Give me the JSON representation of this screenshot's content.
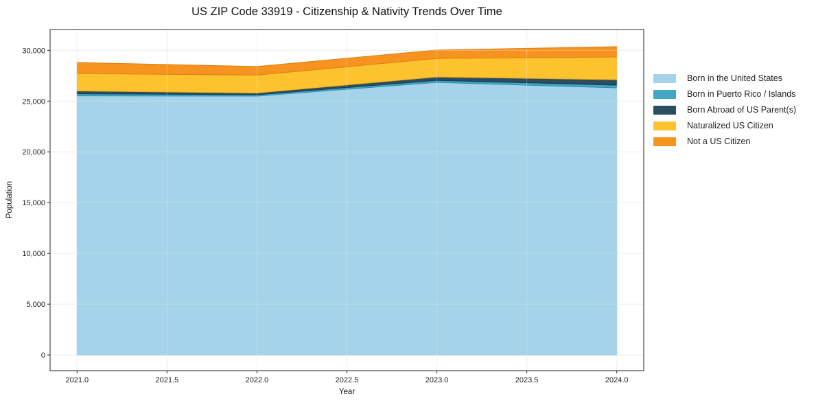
{
  "chart_data": {
    "type": "area",
    "stacked": true,
    "title": "US ZIP Code 33919 - Citizenship & Nativity Trends Over Time",
    "xlabel": "Year",
    "ylabel": "Population",
    "x": [
      2021.0,
      2022.0,
      2023.0,
      2024.0
    ],
    "series": [
      {
        "name": "Born in the United States",
        "color": "#a5d3e9",
        "edge": "#8cc2de",
        "values": [
          25520,
          25490,
          26840,
          26300
        ]
      },
      {
        "name": "Born in Puerto Rico / Islands",
        "color": "#41a7c4",
        "edge": "#2f8fae",
        "values": [
          210,
          140,
          200,
          270
        ]
      },
      {
        "name": "Born Abroad of US Parent(s)",
        "color": "#2a4d62",
        "edge": "#1b3748",
        "values": [
          270,
          170,
          340,
          540
        ]
      },
      {
        "name": "Naturalized US Citizen",
        "color": "#fdc32f",
        "edge": "#edaa1c",
        "values": [
          1720,
          1760,
          1820,
          2230
        ]
      },
      {
        "name": "Not a US Citizen",
        "color": "#f7941f",
        "edge": "#de7e14",
        "values": [
          1080,
          850,
          830,
          1020
        ]
      }
    ],
    "totals": [
      28800,
      28410,
      30030,
      30360
    ],
    "xlim": [
      2020.85,
      2024.15
    ],
    "ylim": [
      -1550,
      32050
    ],
    "x_ticks": [
      {
        "value": 2021.0,
        "label": "2021.0"
      },
      {
        "value": 2021.5,
        "label": "2021.5"
      },
      {
        "value": 2022.0,
        "label": "2022.0"
      },
      {
        "value": 2022.5,
        "label": "2022.5"
      },
      {
        "value": 2023.0,
        "label": "2023.0"
      },
      {
        "value": 2023.5,
        "label": "2023.5"
      },
      {
        "value": 2024.0,
        "label": "2024.0"
      }
    ],
    "y_ticks": [
      {
        "value": 0,
        "label": "0"
      },
      {
        "value": 5000,
        "label": "5,000"
      },
      {
        "value": 10000,
        "label": "10,000"
      },
      {
        "value": 15000,
        "label": "15,000"
      },
      {
        "value": 20000,
        "label": "20,000"
      },
      {
        "value": 25000,
        "label": "25,000"
      },
      {
        "value": 30000,
        "label": "30,000"
      }
    ],
    "grid": true,
    "legend_position": "outside-right",
    "style": {
      "axis_color": "#262626",
      "grid_color": "#e9e9e9",
      "text_color": "#1a1a1a",
      "background": "#ffffff"
    }
  }
}
